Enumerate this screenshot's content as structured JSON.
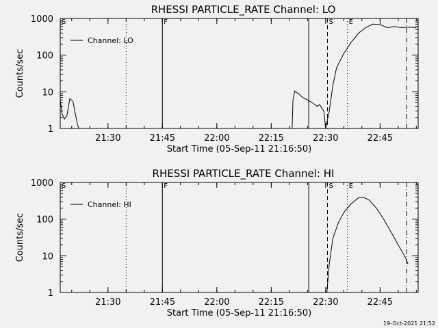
{
  "chart_data": [
    {
      "type": "line",
      "title": "RHESSI PARTICLE_RATE Channel: LO",
      "xlabel": "Start Time (05-Sep-11 21:16:50)",
      "ylabel": "Counts/sec",
      "y_scale": "log",
      "ylim": [
        1,
        1000
      ],
      "xlim": [
        "21:16:50",
        "22:55:30"
      ],
      "x_ticks": [
        "21:30",
        "21:45",
        "22:00",
        "22:15",
        "22:30",
        "22:45"
      ],
      "y_ticks": [
        "1",
        "10",
        "100",
        "1000"
      ],
      "grid": false,
      "legend_position": "top-left",
      "series": [
        {
          "name": "Channel: LO",
          "points": [
            [
              "21:16:50",
              6
            ],
            [
              "21:17:20",
              2.5
            ],
            [
              "21:18:00",
              1.8
            ],
            [
              "21:18:40",
              2.2
            ],
            [
              "21:19:30",
              6.5
            ],
            [
              "21:20:20",
              5.5
            ],
            [
              "21:21:00",
              2.5
            ],
            [
              "21:21:40",
              1.2
            ],
            [
              "21:22:05",
              1
            ],
            [
              "22:20:45",
              1
            ],
            [
              "22:21:00",
              6
            ],
            [
              "22:21:30",
              10.5
            ],
            [
              "22:22:00",
              9.5
            ],
            [
              "22:22:30",
              9
            ],
            [
              "22:23:00",
              8
            ],
            [
              "22:23:40",
              7
            ],
            [
              "22:24:20",
              6.5
            ],
            [
              "22:25:00",
              6
            ],
            [
              "22:25:40",
              5.5
            ],
            [
              "22:26:20",
              5
            ],
            [
              "22:27:00",
              4.5
            ],
            [
              "22:27:40",
              4
            ],
            [
              "22:28:20",
              4.5
            ],
            [
              "22:29:00",
              3.5
            ],
            [
              "22:29:30",
              3
            ],
            [
              "22:30:00",
              1
            ],
            [
              "22:30:00",
              1
            ],
            [
              "22:31:00",
              3
            ],
            [
              "22:32:00",
              15
            ],
            [
              "22:33:00",
              45
            ],
            [
              "22:35:00",
              110
            ],
            [
              "22:37:00",
              220
            ],
            [
              "22:39:00",
              390
            ],
            [
              "22:41:00",
              560
            ],
            [
              "22:43:00",
              700
            ],
            [
              "22:45:00",
              680
            ],
            [
              "22:47:00",
              560
            ],
            [
              "22:49:00",
              600
            ],
            [
              "22:51:00",
              560
            ],
            [
              "22:53:00",
              580
            ],
            [
              "22:55:00",
              560
            ]
          ]
        }
      ],
      "markers": [
        {
          "label": "S",
          "time": "21:16:50",
          "style": "solid"
        },
        {
          "label": "",
          "time": "21:35:00",
          "style": "dotted"
        },
        {
          "label": "F",
          "time": "21:45:00",
          "style": "solid"
        },
        {
          "label": "",
          "time": "22:25:20",
          "style": "solid"
        },
        {
          "label": "S",
          "time": "22:30:30",
          "style": "dashed"
        },
        {
          "label": "E",
          "time": "22:36:00",
          "style": "dotted"
        },
        {
          "label": "",
          "time": "22:52:20",
          "style": "dashdot"
        }
      ]
    },
    {
      "type": "line",
      "title": "RHESSI PARTICLE_RATE Channel: HI",
      "xlabel": "Start Time (05-Sep-11 21:16:50)",
      "ylabel": "Counts/sec",
      "y_scale": "log",
      "ylim": [
        1,
        1000
      ],
      "xlim": [
        "21:16:50",
        "22:55:30"
      ],
      "x_ticks": [
        "21:30",
        "21:45",
        "22:00",
        "22:15",
        "22:30",
        "22:45"
      ],
      "y_ticks": [
        "1",
        "10",
        "100",
        "1000"
      ],
      "grid": false,
      "legend_position": "top-left",
      "series": [
        {
          "name": "Channel: HI",
          "points": [
            [
              "22:30:20",
              1
            ],
            [
              "22:31:00",
              6
            ],
            [
              "22:32:00",
              30
            ],
            [
              "22:33:30",
              80
            ],
            [
              "22:35:00",
              150
            ],
            [
              "22:37:00",
              260
            ],
            [
              "22:39:00",
              380
            ],
            [
              "22:40:30",
              390
            ],
            [
              "22:42:00",
              330
            ],
            [
              "22:44:00",
              200
            ],
            [
              "22:46:00",
              100
            ],
            [
              "22:48:00",
              45
            ],
            [
              "22:50:00",
              20
            ],
            [
              "22:52:00",
              9
            ],
            [
              "22:52:40",
              6
            ]
          ]
        }
      ],
      "markers": [
        {
          "label": "S",
          "time": "21:16:50",
          "style": "solid"
        },
        {
          "label": "",
          "time": "21:35:00",
          "style": "dotted"
        },
        {
          "label": "F",
          "time": "21:45:00",
          "style": "solid"
        },
        {
          "label": "",
          "time": "22:25:20",
          "style": "solid"
        },
        {
          "label": "S",
          "time": "22:30:30",
          "style": "dashed"
        },
        {
          "label": "E",
          "time": "22:36:00",
          "style": "dotted"
        },
        {
          "label": "",
          "time": "22:52:20",
          "style": "dashdot"
        }
      ]
    }
  ],
  "footer": {
    "timestamp": "19-Oct-2021 21:52"
  }
}
